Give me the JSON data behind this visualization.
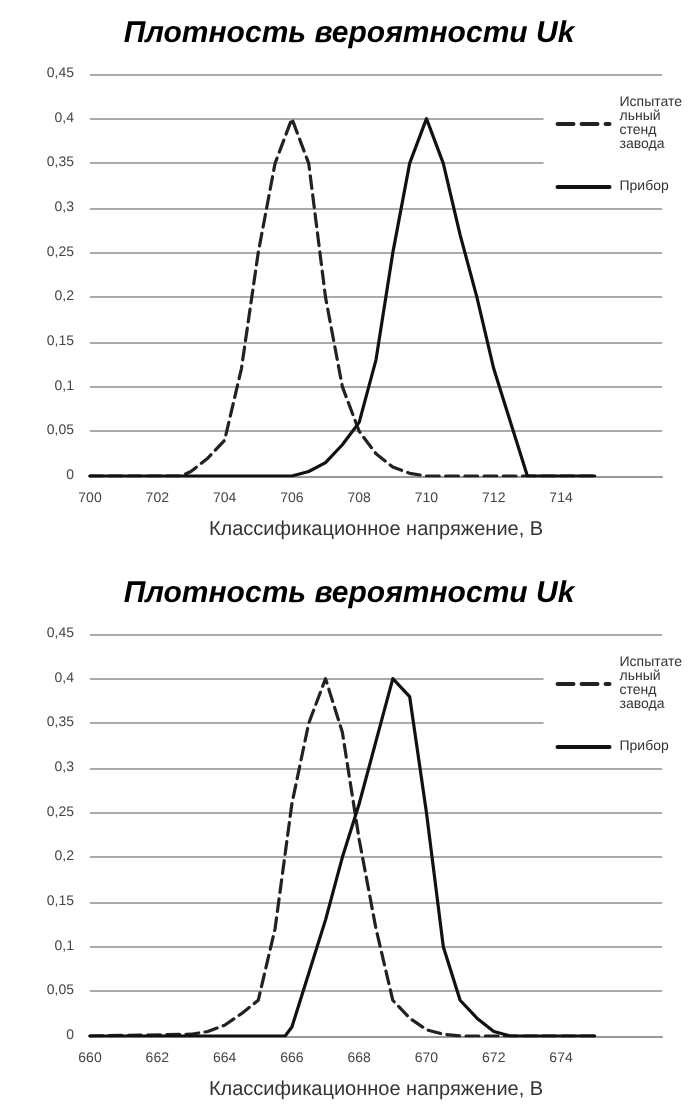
{
  "chart_data": [
    {
      "type": "line",
      "title": "Плотность вероятности Uk",
      "xlabel": "Классификационное напряжение, В",
      "xlim": [
        700,
        717
      ],
      "xticks": [
        700,
        702,
        704,
        706,
        708,
        710,
        712,
        714
      ],
      "ylim": [
        0,
        0.45
      ],
      "yticks": [
        0,
        {
          "value": 0.05,
          "label": "0,05"
        },
        {
          "value": 0.1,
          "label": "0,1"
        },
        {
          "value": 0.15,
          "label": "0,15"
        },
        {
          "value": 0.2,
          "label": "0,2"
        },
        {
          "value": 0.25,
          "label": "0,25"
        },
        {
          "value": 0.3,
          "label": "0,3"
        },
        {
          "value": 0.35,
          "label": "0,35"
        },
        {
          "value": 0.4,
          "label": "0,4"
        },
        {
          "value": 0.45,
          "label": "0,45"
        }
      ],
      "grid": "y",
      "legend": "top right",
      "marker": "none",
      "series": [
        {
          "name": "Испытательный стенд завода",
          "color": "#222222",
          "line_style": "dashed",
          "x": [
            700,
            702,
            702.7,
            703,
            703.5,
            704,
            704.5,
            705,
            705.5,
            706,
            706.5,
            707,
            707.5,
            708,
            708.5,
            709,
            709.5,
            710,
            715
          ],
          "values": [
            0,
            0,
            0,
            0.005,
            0.02,
            0.04,
            0.12,
            0.25,
            0.35,
            0.4,
            0.35,
            0.2,
            0.1,
            0.05,
            0.025,
            0.01,
            0.003,
            0,
            0
          ]
        },
        {
          "name": "Прибор",
          "color": "#111111",
          "line_style": "solid",
          "x": [
            700,
            706,
            706.5,
            707,
            707.5,
            708,
            708.5,
            709,
            709.5,
            710,
            710.5,
            711,
            711.5,
            712,
            712.5,
            713,
            715
          ],
          "values": [
            0,
            0,
            0.005,
            0.015,
            0.035,
            0.06,
            0.13,
            0.25,
            0.35,
            0.4,
            0.35,
            0.27,
            0.2,
            0.12,
            0.06,
            0,
            0
          ]
        }
      ]
    },
    {
      "type": "line",
      "title": "Плотность вероятности Uk",
      "xlabel": "Классификационное напряжение, В",
      "xlim": [
        660,
        677
      ],
      "xticks": [
        660,
        662,
        664,
        666,
        668,
        670,
        672,
        674
      ],
      "ylim": [
        0,
        0.45
      ],
      "yticks": [
        0,
        {
          "value": 0.05,
          "label": "0,05"
        },
        {
          "value": 0.1,
          "label": "0,1"
        },
        {
          "value": 0.15,
          "label": "0,15"
        },
        {
          "value": 0.2,
          "label": "0,2"
        },
        {
          "value": 0.25,
          "label": "0,25"
        },
        {
          "value": 0.3,
          "label": "0,3"
        },
        {
          "value": 0.35,
          "label": "0,35"
        },
        {
          "value": 0.4,
          "label": "0,4"
        },
        {
          "value": 0.45,
          "label": "0,45"
        }
      ],
      "grid": "y",
      "legend": "top right",
      "marker": "none",
      "series": [
        {
          "name": "Испытательный стенд завода",
          "color": "#222222",
          "line_style": "dashed",
          "x": [
            660,
            663,
            663.5,
            664,
            664.5,
            665,
            665.5,
            666,
            666.5,
            667,
            667.5,
            668,
            668.5,
            669,
            669.5,
            670,
            670.5,
            671,
            675
          ],
          "values": [
            0,
            0.002,
            0.005,
            0.012,
            0.025,
            0.04,
            0.12,
            0.26,
            0.35,
            0.4,
            0.34,
            0.22,
            0.12,
            0.04,
            0.02,
            0.007,
            0.002,
            0,
            0
          ]
        },
        {
          "name": "Прибор",
          "color": "#111111",
          "line_style": "solid",
          "x": [
            660,
            665.8,
            666,
            666.5,
            667,
            667.5,
            668,
            668.5,
            669,
            669.5,
            670,
            670.5,
            671,
            671.5,
            672,
            672.5,
            675
          ],
          "values": [
            0,
            0,
            0.01,
            0.07,
            0.13,
            0.2,
            0.26,
            0.33,
            0.4,
            0.38,
            0.25,
            0.1,
            0.04,
            0.02,
            0.005,
            0,
            0
          ]
        }
      ]
    }
  ]
}
